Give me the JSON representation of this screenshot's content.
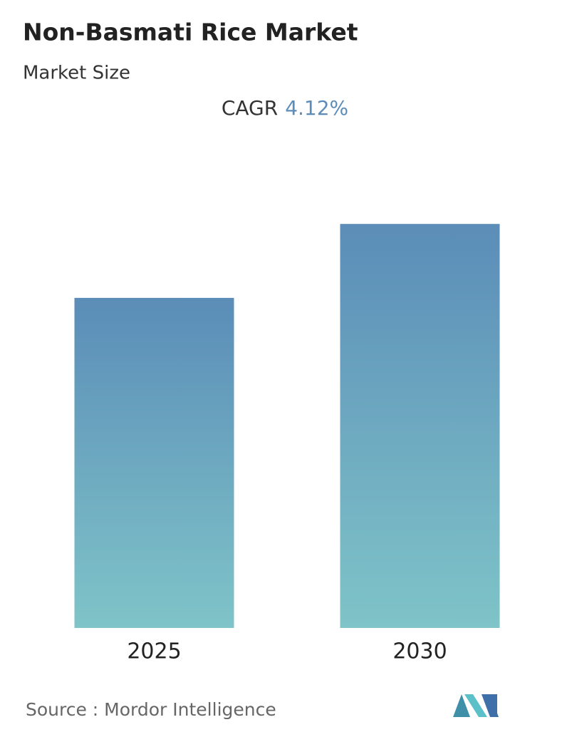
{
  "chart_data": {
    "type": "bar",
    "title": "Non-Basmati Rice Market",
    "subtitle": "Market Size",
    "cagr_label": "CAGR",
    "cagr_value": "4.12%",
    "categories": [
      "2025",
      "2030"
    ],
    "values": [
      100,
      122.4
    ],
    "ylim": [
      0,
      130
    ],
    "color_top": "#5b8db8",
    "color_bottom": "#7fc4c8",
    "source": "Source :  Mordor Intelligence"
  }
}
